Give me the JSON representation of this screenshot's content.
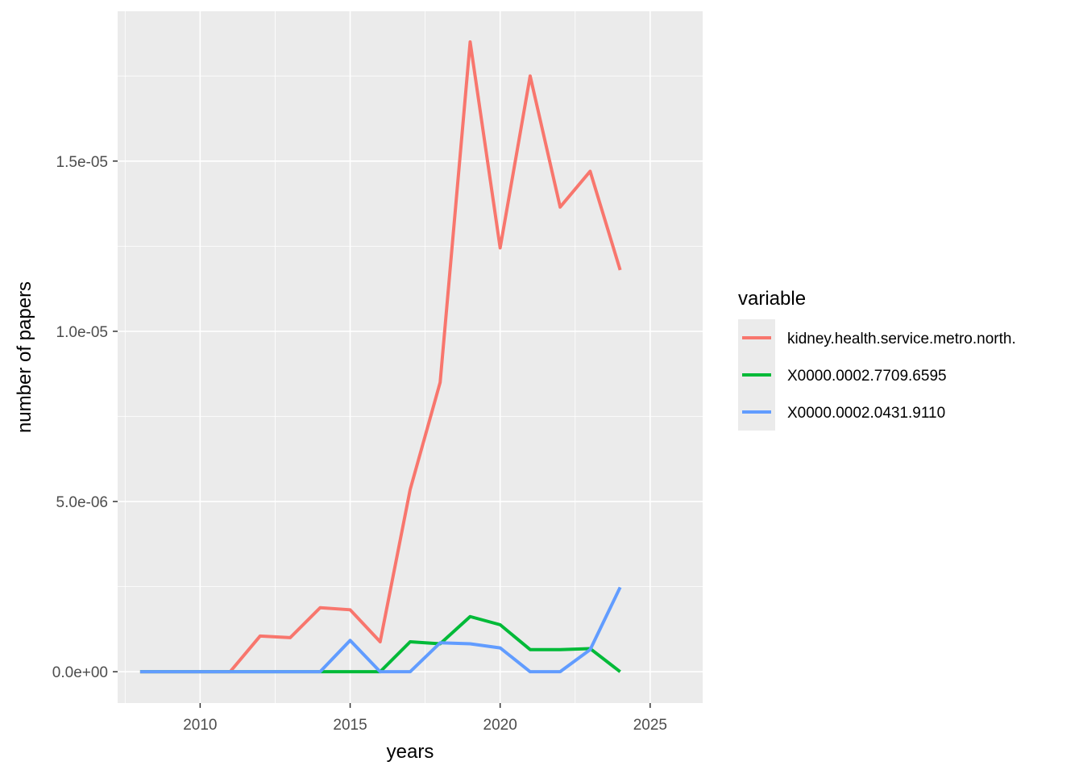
{
  "chart_data": {
    "type": "line",
    "xlabel": "years",
    "ylabel": "number of papers",
    "xlim": [
      2007.25,
      2026.75
    ],
    "ylim": [
      -9.2e-07,
      1.94e-05
    ],
    "x_ticks": [
      2010,
      2015,
      2020,
      2025
    ],
    "x_tick_labels": [
      "2010",
      "2015",
      "2020",
      "2025"
    ],
    "y_ticks": [
      0,
      5e-06,
      1e-05,
      1.5e-05
    ],
    "y_tick_labels": [
      "0.0e+00",
      "5.0e-06",
      "1.0e-05",
      "1.5e-05"
    ],
    "grid": true,
    "legend": {
      "title": "variable",
      "position": "right"
    },
    "x": [
      2008,
      2009,
      2010,
      2011,
      2012,
      2013,
      2014,
      2015,
      2016,
      2017,
      2018,
      2019,
      2020,
      2021,
      2022,
      2023,
      2024
    ],
    "series": [
      {
        "name": "kidney.health.service.metro.north.",
        "color": "#F8766D",
        "values": [
          0,
          0,
          0,
          0,
          1.05e-06,
          1e-06,
          1.88e-06,
          1.82e-06,
          8.8e-07,
          5.35e-06,
          8.5e-06,
          1.85e-05,
          1.245e-05,
          1.75e-05,
          1.365e-05,
          1.47e-05,
          1.18e-05
        ]
      },
      {
        "name": "X0000.0002.7709.6595",
        "color": "#00BA38",
        "values": [
          0,
          0,
          0,
          0,
          0,
          0,
          0,
          0,
          0,
          8.8e-07,
          8.2e-07,
          1.62e-06,
          1.38e-06,
          6.5e-07,
          6.5e-07,
          6.8e-07,
          0
        ]
      },
      {
        "name": "X0000.0002.0431.9110",
        "color": "#619CFF",
        "values": [
          0,
          0,
          0,
          0,
          0,
          0,
          0,
          9.2e-07,
          0,
          0,
          8.5e-07,
          8.2e-07,
          7e-07,
          0,
          0,
          6.5e-07,
          2.48e-06
        ]
      }
    ]
  },
  "colors": {
    "panel_background": "#EBEBEB",
    "grid_major": "#FFFFFF",
    "legend_key_background": "#EBEBEB"
  }
}
